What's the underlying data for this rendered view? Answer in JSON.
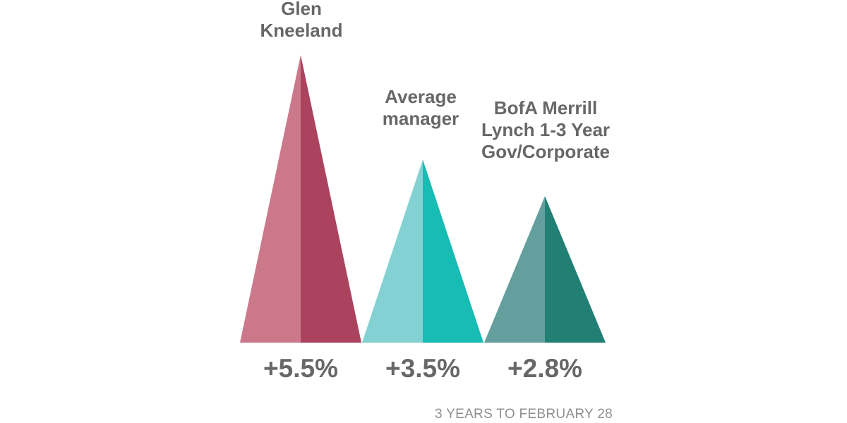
{
  "chart_data": {
    "type": "bar",
    "categories": [
      "Glen Kneeland",
      "Average manager",
      "BofA Merrill Lynch 1-3 Year Gov/Corporate"
    ],
    "series": [
      {
        "values": [
          5.5,
          3.5,
          2.8
        ]
      }
    ],
    "value_labels": [
      "+5.5%",
      "+3.5%",
      "+2.8%"
    ],
    "footnote": "3 YEARS TO FEBRUARY 28",
    "title": "",
    "xlabel": "",
    "ylabel": "",
    "ylim": [
      0,
      5.5
    ],
    "grid": false,
    "legend": "none",
    "mark_shape": "triangle",
    "colors": [
      {
        "light": "#cc788b",
        "dark": "#ab425e"
      },
      {
        "light": "#83d1d3",
        "dark": "#17bcb4"
      },
      {
        "light": "#649f9e",
        "dark": "#227f74"
      }
    ]
  },
  "labels": {
    "series_1": [
      "Glen",
      "Kneeland"
    ],
    "series_2": [
      "Average",
      "manager"
    ],
    "series_3": [
      "BofA Merrill",
      "Lynch 1-3 Year",
      "Gov/Corporate"
    ]
  }
}
